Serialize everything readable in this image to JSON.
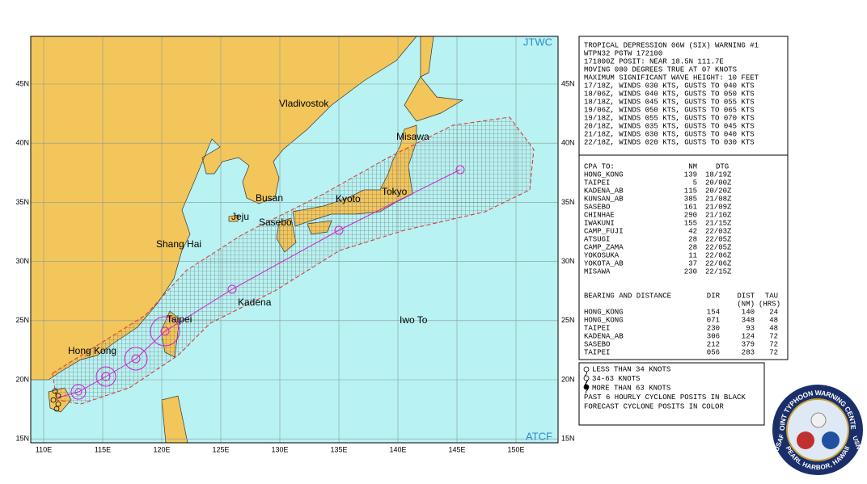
{
  "map": {
    "corner_labels": {
      "top_right": "JTWC",
      "bottom_right": "ATCF"
    },
    "lat_labels": [
      "45N",
      "40N",
      "35N",
      "30N",
      "25N",
      "20N",
      "15N"
    ],
    "lon_labels": [
      "110E",
      "115E",
      "120E",
      "125E",
      "130E",
      "135E",
      "140E",
      "145E",
      "150E"
    ],
    "places": [
      "Vladivostok",
      "Misawa",
      "Busan",
      "Kyoto",
      "Tokyo",
      "Jeju",
      "Sasebo",
      "Shang Hai",
      "Kadena",
      "Taipei",
      "Iwo To",
      "Hong Kong"
    ]
  },
  "warning": {
    "lines": [
      "TROPICAL DEPRESSION 06W (SIX) WARNING #1",
      "WTPN32 PGTW 172100",
      "171800Z POSIT: NEAR 18.5N 111.7E",
      "MOVING 080 DEGREES TRUE AT 07 KNOTS",
      "MAXIMUM SIGNIFICANT WAVE HEIGHT: 10 FEET",
      "17/18Z, WINDS 030 KTS, GUSTS TO 040 KTS",
      "18/06Z, WINDS 040 KTS, GUSTS TO 050 KTS",
      "18/18Z, WINDS 045 KTS, GUSTS TO 055 KTS",
      "19/06Z, WINDS 050 KTS, GUSTS TO 065 KTS",
      "19/18Z, WINDS 055 KTS, GUSTS TO 070 KTS",
      "20/18Z, WINDS 035 KTS, GUSTS TO 045 KTS",
      "21/18Z, WINDS 030 KTS, GUSTS TO 040 KTS",
      "22/18Z, WINDS 020 KTS, GUSTS TO 030 KTS"
    ]
  },
  "cpa": {
    "header": [
      "CPA TO:",
      "NM",
      "DTG"
    ],
    "rows": [
      [
        "HONG_KONG",
        "139",
        "18/19Z"
      ],
      [
        "TAIPEI",
        "5",
        "20/00Z"
      ],
      [
        "KADENA_AB",
        "115",
        "20/20Z"
      ],
      [
        "KUNSAN_AB",
        "385",
        "21/08Z"
      ],
      [
        "SASEBO",
        "161",
        "21/09Z"
      ],
      [
        "CHINHAE",
        "290",
        "21/10Z"
      ],
      [
        "IWAKUNI",
        "155",
        "21/15Z"
      ],
      [
        "CAMP_FUJI",
        "42",
        "22/03Z"
      ],
      [
        "ATSUGI",
        "28",
        "22/05Z"
      ],
      [
        "CAMP_ZAMA",
        "28",
        "22/05Z"
      ],
      [
        "YOKOSUKA",
        "11",
        "22/06Z"
      ],
      [
        "YOKOTA_AB",
        "37",
        "22/06Z"
      ],
      [
        "MISAWA",
        "230",
        "22/15Z"
      ]
    ]
  },
  "bearing": {
    "title": "BEARING AND DISTANCE",
    "columns": [
      "DIR",
      "DIST",
      "TAU"
    ],
    "units": [
      "(NM)",
      "(HRS)"
    ],
    "rows": [
      [
        "HONG_KONG",
        "154",
        "140",
        "24"
      ],
      [
        "HONG_KONG",
        "071",
        "348",
        "48"
      ],
      [
        "TAIPEI",
        "230",
        "93",
        "48"
      ],
      [
        "KADENA_AB",
        "306",
        "124",
        "72"
      ],
      [
        "SASEBO",
        "212",
        "379",
        "72"
      ],
      [
        "TAIPEI",
        "056",
        "283",
        "72"
      ]
    ]
  },
  "legend": {
    "items": [
      "LESS THAN 34 KNOTS",
      "34-63 KNOTS",
      "MORE THAN 63 KNOTS",
      "PAST 6 HOURLY CYCLONE POSITS IN BLACK",
      "FORECAST CYCLONE POSITS IN COLOR"
    ]
  },
  "logo": {
    "top": "JOINT TYPHOON WARNING CENTER",
    "bottom": "PEARL HARBOR, HAWAII",
    "left": "USAF",
    "right": "USN"
  }
}
